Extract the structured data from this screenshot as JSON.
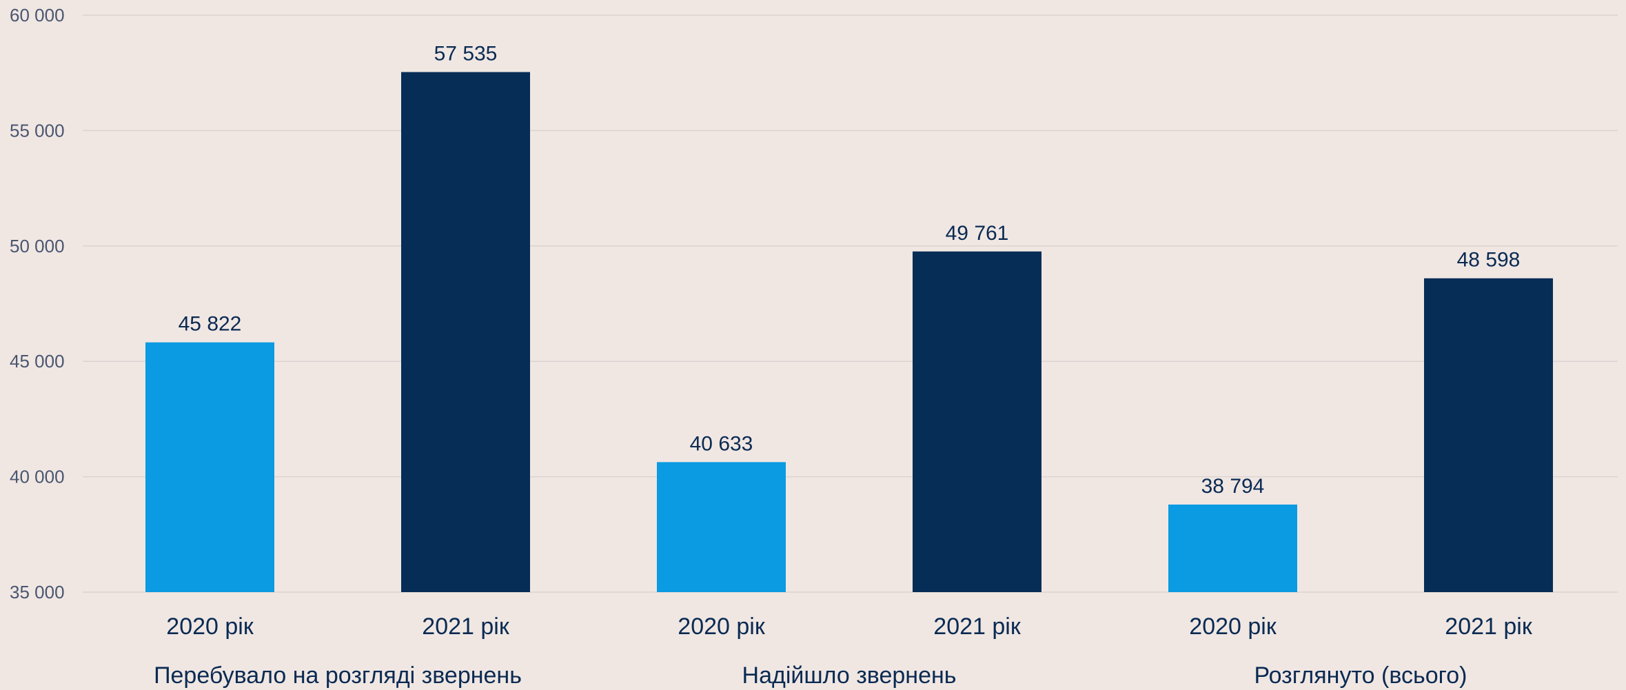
{
  "chart_data": {
    "type": "bar",
    "title": "",
    "xlabel": "",
    "ylabel": "",
    "ylim": [
      35000,
      60000
    ],
    "yticks": [
      35000,
      40000,
      45000,
      50000,
      55000,
      60000
    ],
    "ytick_labels": [
      "35 000",
      "40 000",
      "45 000",
      "50 000",
      "55 000",
      "60 000"
    ],
    "grid": true,
    "legend": "none",
    "groups": [
      {
        "label": "Перебувало на розгляді звернень",
        "bars": [
          {
            "category": "2020 рік",
            "value": 45822,
            "value_label": "45 822"
          },
          {
            "category": "2021 рік",
            "value": 57535,
            "value_label": "57 535"
          }
        ]
      },
      {
        "label": "Надійшло звернень",
        "bars": [
          {
            "category": "2020 рік",
            "value": 40633,
            "value_label": "40 633"
          },
          {
            "category": "2021 рік",
            "value": 49761,
            "value_label": "49 761"
          }
        ]
      },
      {
        "label": "Розглянуто (всього)",
        "bars": [
          {
            "category": "2020 рік",
            "value": 38794,
            "value_label": "38 794"
          },
          {
            "category": "2021 рік",
            "value": 48598,
            "value_label": "48 598"
          }
        ]
      }
    ],
    "colors": {
      "2020 рік": "#0a9be2",
      "2021 рік": "#062d56"
    }
  }
}
